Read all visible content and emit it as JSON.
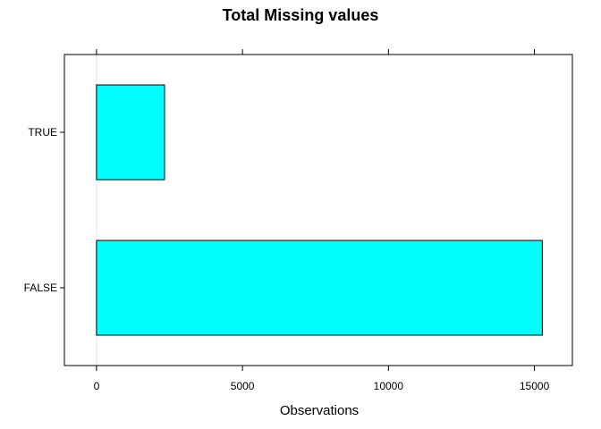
{
  "chart_data": {
    "type": "bar",
    "orientation": "horizontal",
    "title": "Total Missing values",
    "xlabel": "Observations",
    "ylabel": "",
    "categories": [
      "FALSE",
      "TRUE"
    ],
    "values": [
      15270,
      2330
    ],
    "xlim": [
      -1100,
      16300
    ],
    "xticks": [
      0,
      5000,
      10000,
      15000
    ],
    "xtick_labels": [
      "0",
      "5000",
      "10000",
      "15000"
    ],
    "bar_color": "#00ffff",
    "bar_border_color": "#000000",
    "reference_line_color": "#e6e6e6",
    "grid": false,
    "legend": "none"
  }
}
